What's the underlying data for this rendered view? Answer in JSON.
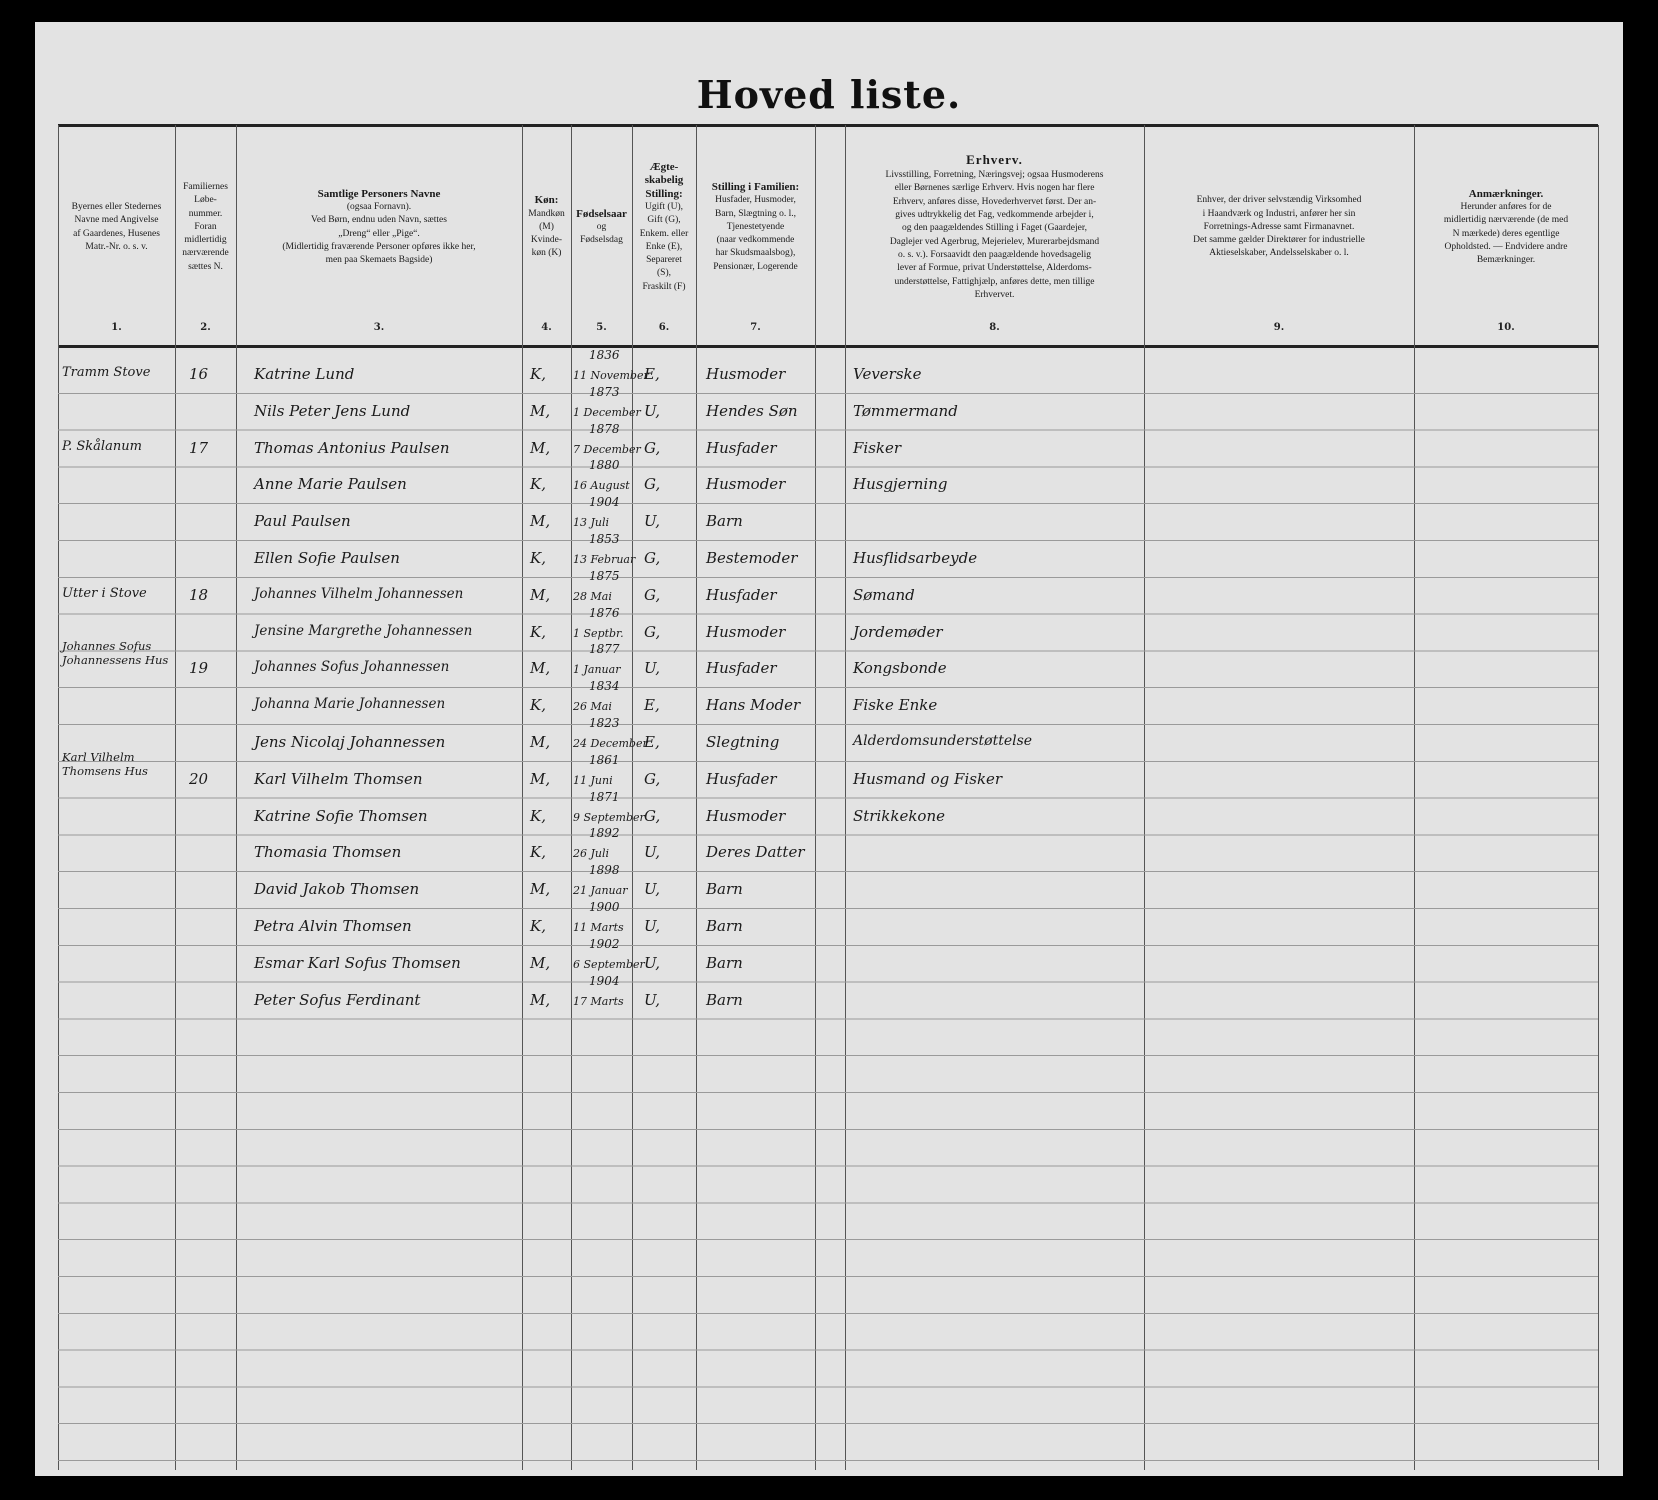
{
  "title": "Hoved liste.",
  "headers": [
    {
      "num": "1.",
      "lines": [
        "Byernes eller Stedernes",
        "Navne med Angivelse",
        "af Gaardenes, Husenes",
        "Matr.-Nr. o. s. v."
      ]
    },
    {
      "num": "2.",
      "lines": [
        "Familiernes",
        "Løbe-",
        "nummer.",
        "Foran",
        "midlertidig",
        "nærværende",
        "sættes N."
      ]
    },
    {
      "num": "3.",
      "title": "Samtlige Personers Navne",
      "lines": [
        "(ogsaa Fornavn).",
        "Ved Børn, endnu uden Navn, sættes",
        "„Dreng“ eller „Pige“.",
        "(Midlertidig fraværende Personer opføres ikke her,",
        "men paa Skemaets Bagside)"
      ]
    },
    {
      "num": "4.",
      "title": "Køn:",
      "lines": [
        "Mandkøn",
        "(M)",
        "Kvinde-",
        "køn (K)"
      ]
    },
    {
      "num": "5.",
      "title": "Fødselsaar",
      "lines": [
        "og",
        "Fødselsdag"
      ]
    },
    {
      "num": "6.",
      "title": "Ægte-skabelig Stilling:",
      "lines": [
        "Ugift (U),",
        "Gift (G),",
        "Enkem. eller",
        "Enke (E),",
        "Separeret",
        "(S),",
        "Fraskilt (F)"
      ]
    },
    {
      "num": "7.",
      "title": "Stilling i Familien:",
      "lines": [
        "Husfader, Husmoder,",
        "Barn, Slægtning o. l.,",
        "Tjenestetyende",
        "(naar vedkommende",
        "har Skudsmaalsbog),",
        "Pensionær, Logerende"
      ]
    },
    {
      "num": "8.",
      "title": "Erhverv.",
      "lines": [
        "Livsstilling, Forretning, Næringsvej; ogsaa Husmoderens",
        "eller Børnenes særlige Erhverv. Hvis nogen har flere",
        "Erhverv, anføres disse, Hovederhvervet først. Der an-",
        "gives udtrykkelig det Fag, vedkommende arbejder i,",
        "og den paagældendes Stilling i Faget (Gaardejer,",
        "Daglejer ved Agerbrug, Mejerielev, Murerarbejdsmand",
        "o. s. v.). Forsaavidt den paagældende hovedsagelig",
        "lever af Formue, privat Understøttelse, Alderdoms-",
        "understøttelse, Fattighjælp, anføres dette, men tillige",
        "Erhvervet."
      ]
    },
    {
      "num": "9.",
      "lines": [
        "Enhver, der driver selvstændig Virksomhed",
        "i Haandværk og Industri, anfører her sin",
        "Forretnings-Adresse samt Firmanavnet.",
        "Det samme gælder Direktører for industrielle",
        "Aktieselskaber, Andelsselskaber o. l."
      ]
    },
    {
      "num": "10.",
      "title": "Anmærkninger.",
      "lines": [
        "Herunder anføres for de",
        "midlertidig nærværende (de med",
        "N mærkede) deres egentlige",
        "Opholdsted. — Endvidere andre",
        "Bemærkninger."
      ]
    }
  ],
  "rows": [
    {
      "place": "Tramm Stove",
      "fam": "16",
      "name": "Katrine Lund",
      "sex": "K,",
      "year": "1836",
      "day": "11 November",
      "civil": "E,",
      "role": "Husmoder",
      "occ": "Veverske"
    },
    {
      "place": "",
      "fam": "",
      "name": "Nils Peter Jens Lund",
      "sex": "M,",
      "year": "1873",
      "day": "1 December",
      "civil": "U,",
      "role": "Hendes Søn",
      "occ": "Tømmermand"
    },
    {
      "place": "P. Skålanum",
      "fam": "17",
      "name": "Thomas Antonius Paulsen",
      "sex": "M,",
      "year": "1878",
      "day": "7 December",
      "civil": "G,",
      "role": "Husfader",
      "occ": "Fisker"
    },
    {
      "place": "",
      "fam": "",
      "name": "Anne Marie Paulsen",
      "sex": "K,",
      "year": "1880",
      "day": "16 August",
      "civil": "G,",
      "role": "Husmoder",
      "occ": "Husgjerning"
    },
    {
      "place": "",
      "fam": "",
      "name": "Paul Paulsen",
      "sex": "M,",
      "year": "1904",
      "day": "13 Juli",
      "civil": "U,",
      "role": "Barn",
      "occ": ""
    },
    {
      "place": "",
      "fam": "",
      "name": "Ellen Sofie Paulsen",
      "sex": "K,",
      "year": "1853",
      "day": "13 Februar",
      "civil": "G,",
      "role": "Bestemoder",
      "occ": "Husflidsarbeyde"
    },
    {
      "place": "Utter i Stove",
      "fam": "18",
      "name": "Johannes Vilhelm Johannessen",
      "sex": "M,",
      "year": "1875",
      "day": "28 Mai",
      "civil": "G,",
      "role": "Husfader",
      "occ": "Sømand"
    },
    {
      "place": "",
      "fam": "",
      "name": "Jensine Margrethe Johannessen",
      "sex": "K,",
      "year": "1876",
      "day": "1 Septbr.",
      "civil": "G,",
      "role": "Husmoder",
      "occ": "Jordemøder"
    },
    {
      "place": "Johannes Sofus Johannessens Hus",
      "fam": "19",
      "name": "Johannes Sofus Johannessen",
      "sex": "M,",
      "year": "1877",
      "day": "1 Januar",
      "civil": "U,",
      "role": "Husfader",
      "occ": "Kongsbonde"
    },
    {
      "place": "",
      "fam": "",
      "name": "Johanna Marie Johannessen",
      "sex": "K,",
      "year": "1834",
      "day": "26 Mai",
      "civil": "E,",
      "role": "Hans Moder",
      "occ": "Fiske Enke"
    },
    {
      "place": "",
      "fam": "",
      "name": "Jens Nicolaj Johannessen",
      "sex": "M,",
      "year": "1823",
      "day": "24 December",
      "civil": "E,",
      "role": "Slegtning",
      "occ": "Alderdomsunderstøttelse"
    },
    {
      "place": "Karl Vilhelm Thomsens Hus",
      "fam": "20",
      "name": "Karl Vilhelm Thomsen",
      "sex": "M,",
      "year": "1861",
      "day": "11 Juni",
      "civil": "G,",
      "role": "Husfader",
      "occ": "Husmand og Fisker"
    },
    {
      "place": "",
      "fam": "",
      "name": "Katrine Sofie Thomsen",
      "sex": "K,",
      "year": "1871",
      "day": "9 September",
      "civil": "G,",
      "role": "Husmoder",
      "occ": "Strikkekone"
    },
    {
      "place": "",
      "fam": "",
      "name": "Thomasia Thomsen",
      "sex": "K,",
      "year": "1892",
      "day": "26 Juli",
      "civil": "U,",
      "role": "Deres Datter",
      "occ": ""
    },
    {
      "place": "",
      "fam": "",
      "name": "David Jakob Thomsen",
      "sex": "M,",
      "year": "1898",
      "day": "21 Januar",
      "civil": "U,",
      "role": "Barn",
      "occ": ""
    },
    {
      "place": "",
      "fam": "",
      "name": "Petra Alvin Thomsen",
      "sex": "K,",
      "year": "1900",
      "day": "11 Marts",
      "civil": "U,",
      "role": "Barn",
      "occ": ""
    },
    {
      "place": "",
      "fam": "",
      "name": "Esmar Karl Sofus Thomsen",
      "sex": "M,",
      "year": "1902",
      "day": "6 September",
      "civil": "U,",
      "role": "Barn",
      "occ": ""
    },
    {
      "place": "",
      "fam": "",
      "name": "Peter Sofus Ferdinant",
      "sex": "M,",
      "year": "1904",
      "day": "17 Marts",
      "civil": "U,",
      "role": "Barn",
      "occ": ""
    }
  ]
}
